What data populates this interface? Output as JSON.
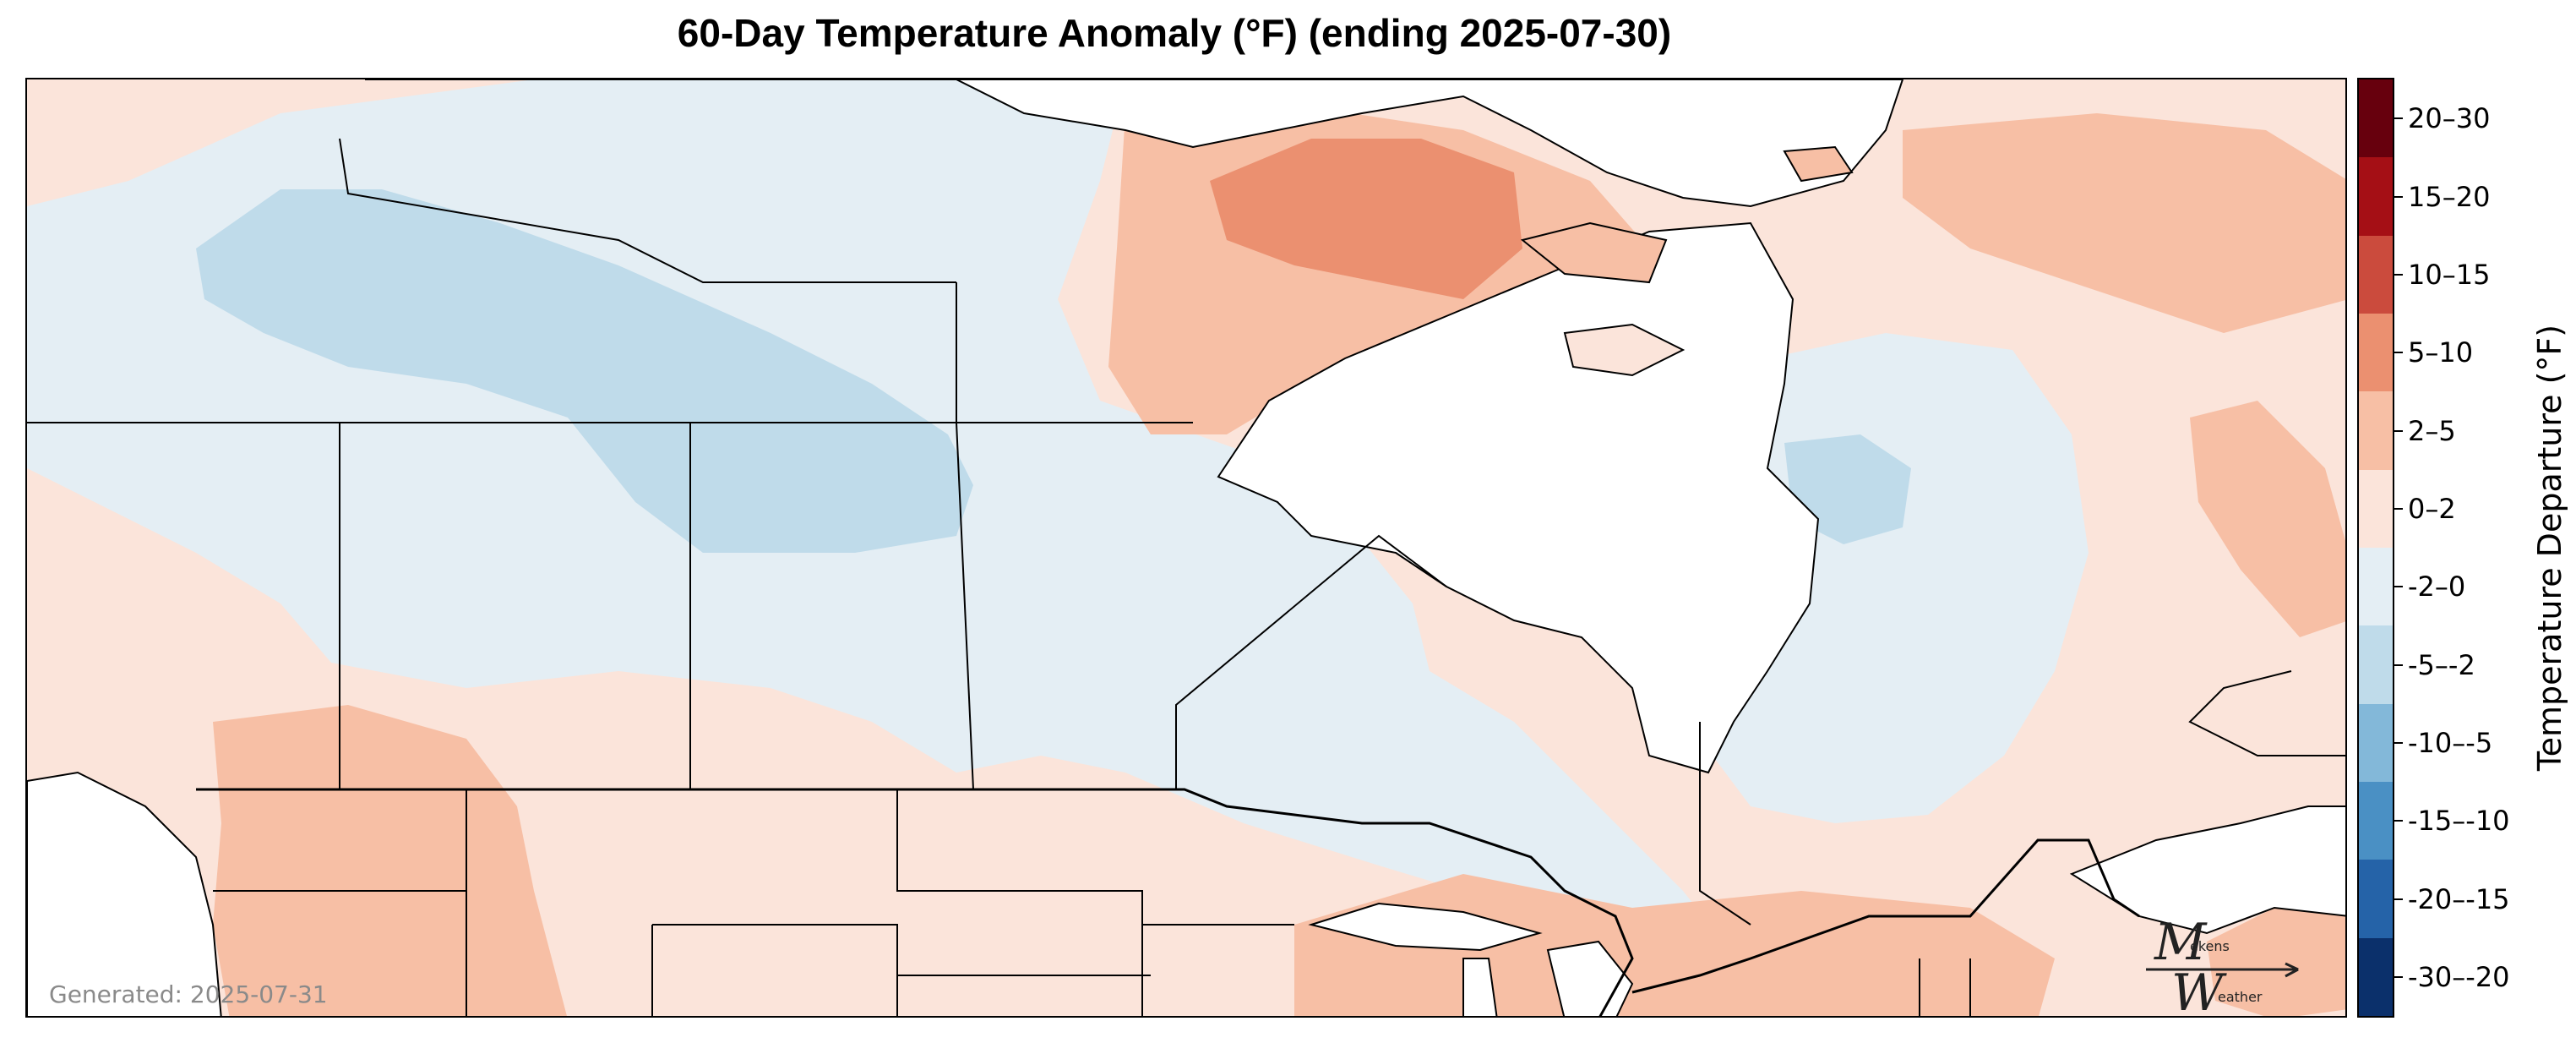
{
  "title": "60-Day Temperature Anomaly (°F) (ending 2025-07-30)",
  "generated": "Generated: 2025-07-31",
  "colorbar": {
    "title": "Temperature Departure (°F)",
    "bins": [
      {
        "label": "20–30",
        "color": "#67000d"
      },
      {
        "label": "15–20",
        "color": "#a50f15"
      },
      {
        "label": "10–15",
        "color": "#cb4b3d"
      },
      {
        "label": "5–10",
        "color": "#eb9070"
      },
      {
        "label": "2–5",
        "color": "#f7bfa5"
      },
      {
        "label": "0–2",
        "color": "#fbe4da"
      },
      {
        "label": "-2–0",
        "color": "#e4eef4"
      },
      {
        "label": "-5–-2",
        "color": "#bfdbea"
      },
      {
        "label": "-10–-5",
        "color": "#83b8d9"
      },
      {
        "label": "-15–-10",
        "color": "#4a90c4"
      },
      {
        "label": "-20–-15",
        "color": "#2563a8"
      },
      {
        "label": "-30–-20",
        "color": "#0b306b"
      }
    ]
  },
  "logo": {
    "line1": "ekens",
    "line2": "eather"
  },
  "colors": {
    "land_water": "#ffffff",
    "border": "#000000",
    "generated_text": "#8a8a8a"
  }
}
